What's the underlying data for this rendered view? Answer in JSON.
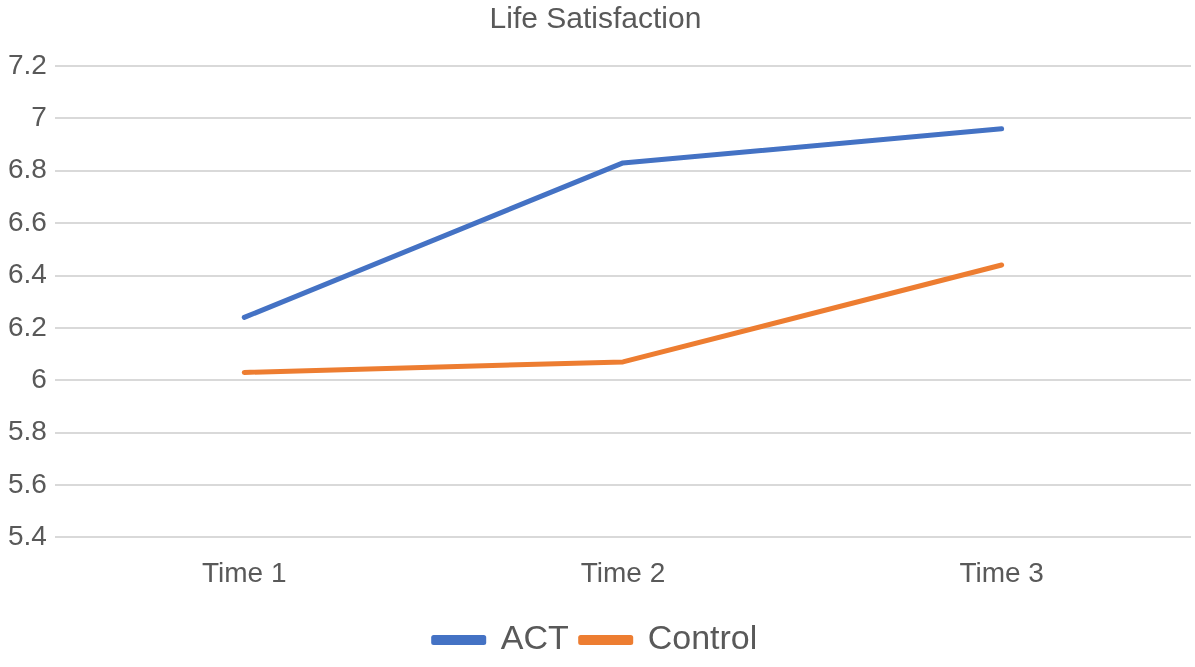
{
  "chart_data": {
    "type": "line",
    "title": "Life Satisfaction",
    "categories": [
      "Time 1",
      "Time 2",
      "Time 3"
    ],
    "series": [
      {
        "name": "ACT",
        "color": "#4472c4",
        "values": [
          6.24,
          6.83,
          6.96
        ]
      },
      {
        "name": "Control",
        "color": "#ed7d31",
        "values": [
          6.03,
          6.07,
          6.44
        ]
      }
    ],
    "ylim": [
      5.4,
      7.2
    ],
    "yticks": [
      5.4,
      5.6,
      5.8,
      6,
      6.2,
      6.4,
      6.6,
      6.8,
      7,
      7.2
    ],
    "grid": "y",
    "legend": "bottom",
    "marker": "none",
    "line_style": "solid"
  }
}
